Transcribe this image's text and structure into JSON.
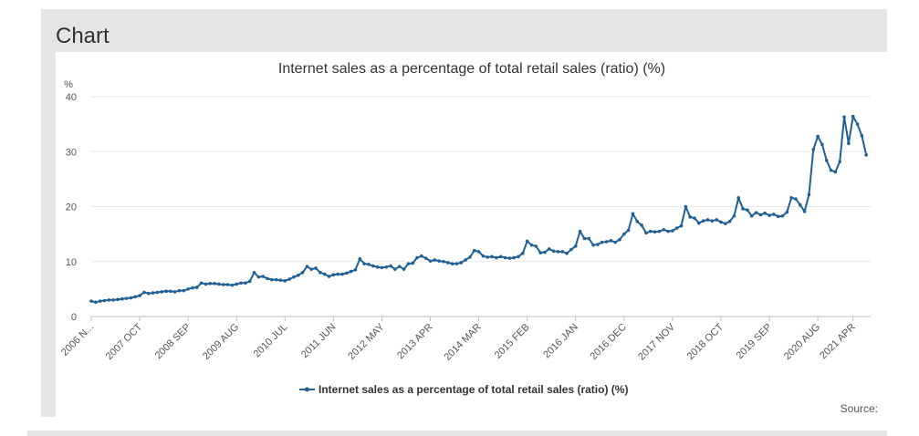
{
  "panel": {
    "heading": "Chart"
  },
  "chart_data": {
    "type": "line",
    "title": "Internet sales as a percentage of total retail sales (ratio) (%)",
    "y_unit": "%",
    "ylim": [
      0,
      40
    ],
    "yticks": [
      0,
      10,
      20,
      30,
      40
    ],
    "xlim": [
      0,
      177
    ],
    "xtick_labels": [
      {
        "i": 0,
        "label": "2006 N..."
      },
      {
        "i": 11,
        "label": "2007 OCT"
      },
      {
        "i": 22,
        "label": "2008 SEP"
      },
      {
        "i": 33,
        "label": "2009 AUG"
      },
      {
        "i": 44,
        "label": "2010 JUL"
      },
      {
        "i": 55,
        "label": "2011 JUN"
      },
      {
        "i": 66,
        "label": "2012 MAY"
      },
      {
        "i": 77,
        "label": "2013 APR"
      },
      {
        "i": 88,
        "label": "2014 MAR"
      },
      {
        "i": 99,
        "label": "2015 FEB"
      },
      {
        "i": 110,
        "label": "2016 JAN"
      },
      {
        "i": 121,
        "label": "2016 DEC"
      },
      {
        "i": 132,
        "label": "2017 NOV"
      },
      {
        "i": 143,
        "label": "2018 OCT"
      },
      {
        "i": 154,
        "label": "2019 SEP"
      },
      {
        "i": 165,
        "label": "2020 AUG"
      },
      {
        "i": 173,
        "label": "2021 APR"
      }
    ],
    "series": [
      {
        "name": "Internet sales as a percentage of total retail sales (ratio) (%)",
        "color": "#206095",
        "values": [
          2.8,
          2.6,
          2.8,
          2.9,
          3.0,
          3.0,
          3.1,
          3.2,
          3.3,
          3.4,
          3.6,
          3.8,
          4.4,
          4.2,
          4.3,
          4.4,
          4.5,
          4.6,
          4.6,
          4.5,
          4.7,
          4.7,
          5.0,
          5.2,
          5.3,
          6.1,
          5.9,
          6.0,
          6.0,
          5.9,
          5.8,
          5.8,
          5.7,
          5.9,
          6.1,
          6.1,
          6.4,
          8.0,
          7.2,
          7.3,
          6.9,
          6.7,
          6.7,
          6.6,
          6.5,
          6.8,
          7.2,
          7.5,
          8.0,
          9.1,
          8.6,
          8.8,
          8.0,
          7.7,
          7.3,
          7.6,
          7.7,
          7.7,
          7.9,
          8.2,
          8.5,
          10.5,
          9.6,
          9.5,
          9.2,
          9.0,
          8.9,
          9.0,
          9.2,
          8.6,
          9.1,
          8.6,
          9.6,
          9.7,
          10.7,
          11.0,
          10.6,
          10.1,
          10.3,
          10.1,
          10.0,
          9.8,
          9.6,
          9.6,
          9.8,
          10.3,
          10.8,
          12.0,
          11.8,
          11.0,
          10.8,
          10.9,
          10.7,
          10.9,
          10.7,
          10.6,
          10.7,
          10.9,
          11.5,
          13.7,
          13.0,
          12.8,
          11.6,
          11.7,
          12.3,
          11.9,
          11.8,
          11.8,
          11.5,
          12.2,
          12.8,
          15.5,
          14.2,
          14.2,
          13.0,
          13.1,
          13.5,
          13.6,
          13.8,
          13.5,
          14.0,
          15.0,
          15.7,
          18.7,
          17.3,
          16.6,
          15.2,
          15.5,
          15.4,
          15.5,
          15.8,
          15.5,
          15.6,
          16.1,
          16.5,
          20.0,
          18.1,
          17.9,
          17.0,
          17.4,
          17.6,
          17.4,
          17.6,
          17.2,
          16.9,
          17.3,
          18.3,
          21.6,
          19.6,
          19.4,
          18.3,
          18.9,
          18.5,
          18.8,
          18.4,
          18.6,
          18.2,
          18.3,
          19.0,
          21.6,
          21.4,
          20.3,
          19.1,
          22.2,
          30.4,
          32.8,
          31.3,
          28.4,
          26.6,
          26.3,
          28.2,
          36.3,
          31.5,
          36.4,
          35.0,
          32.9,
          29.4
        ]
      }
    ],
    "legend": {
      "position": "bottom",
      "label": "Internet sales as a percentage of total retail sales (ratio) (%)"
    },
    "source_label": "Source:"
  }
}
